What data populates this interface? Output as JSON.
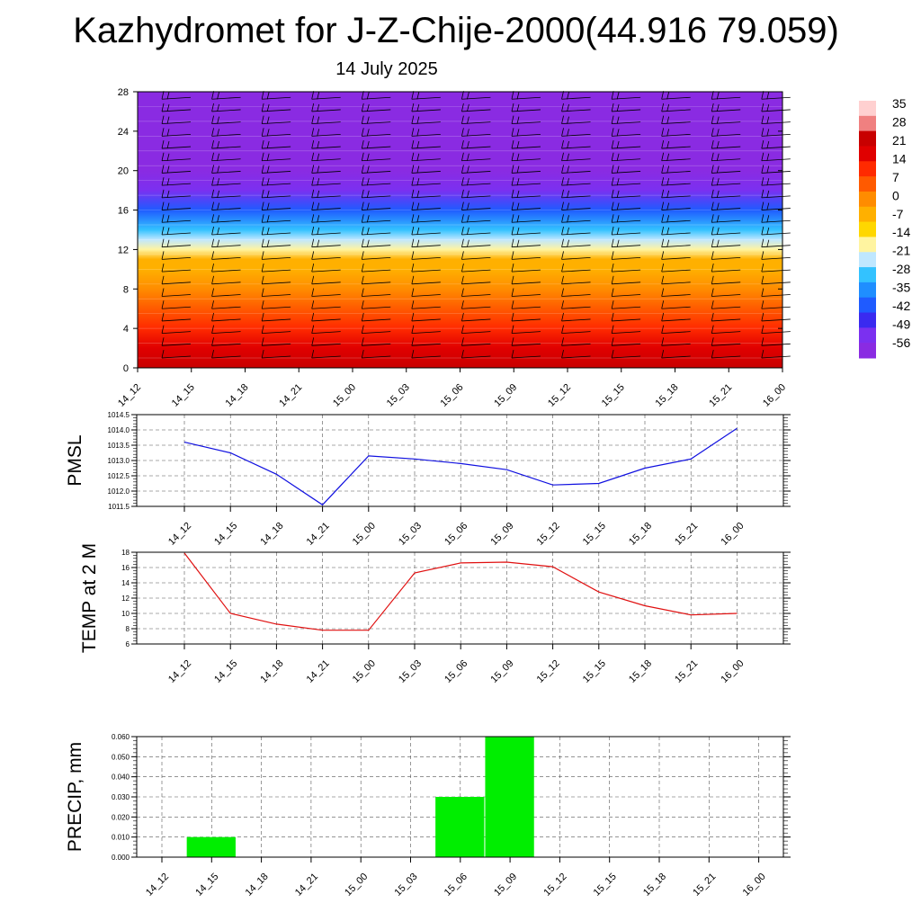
{
  "title": "Kazhydromet for J-Z-Chije-2000(44.916 79.059)",
  "subtitle": "14 July 2025",
  "colors": {
    "pmsl_line": "#1010e0",
    "temp_line": "#e01010",
    "precip_bar": "#00ee00",
    "cross_section_scale": [
      "#8a2be2",
      "#7b30f0",
      "#3a2af0",
      "#1f5bff",
      "#1f8eff",
      "#33c2ff",
      "#bfe7ff",
      "#fff4a0",
      "#ffd700",
      "#ffb000",
      "#ff8c00",
      "#ff5a00",
      "#ff2a00",
      "#e00000",
      "#c80000",
      "#f08080",
      "#ffd0d0"
    ]
  },
  "chart_data": [
    {
      "type": "heatmap",
      "title": "",
      "x": [
        "14_12",
        "14_15",
        "14_18",
        "14_21",
        "15_00",
        "15_03",
        "15_06",
        "15_09",
        "15_12",
        "15_15",
        "15_18",
        "15_21",
        "16_00"
      ],
      "yticks": [
        0,
        4,
        8,
        12,
        16,
        20,
        24,
        28
      ],
      "ylim": [
        0,
        28
      ],
      "colorbar_labels": [
        "35",
        "28",
        "21",
        "14",
        "7",
        "0",
        "-7",
        "-14",
        "-21",
        "-28",
        "-35",
        "-42",
        "-49",
        "-56"
      ],
      "colorbar_range": [
        -60,
        38
      ],
      "temperature_profile_by_height": [
        {
          "z": 0,
          "t": 22
        },
        {
          "z": 2,
          "t": 17
        },
        {
          "z": 4,
          "t": 12
        },
        {
          "z": 6,
          "t": 7
        },
        {
          "z": 8,
          "t": 2
        },
        {
          "z": 10,
          "t": -4
        },
        {
          "z": 11,
          "t": -8
        },
        {
          "z": 12,
          "t": -14
        },
        {
          "z": 13,
          "t": -21
        },
        {
          "z": 14,
          "t": -28
        },
        {
          "z": 16,
          "t": -40
        },
        {
          "z": 18,
          "t": -50
        },
        {
          "z": 20,
          "t": -58
        },
        {
          "z": 22,
          "t": -56
        },
        {
          "z": 24,
          "t": -58
        },
        {
          "z": 28,
          "t": -60
        }
      ],
      "wind_barbs": "present at every time step and level"
    },
    {
      "type": "line",
      "ylabel": "PMSL",
      "x": [
        "14_12",
        "14_15",
        "14_18",
        "14_21",
        "15_00",
        "15_03",
        "15_06",
        "15_09",
        "15_12",
        "15_15",
        "15_18",
        "15_21",
        "16_00"
      ],
      "yticks": [
        "1011.5",
        "1012.0",
        "1012.5",
        "1013.0",
        "1013.5",
        "1014.0",
        "1014.5"
      ],
      "ylim": [
        1011.5,
        1014.5
      ],
      "grid": true,
      "series": [
        {
          "values": [
            1013.6,
            1013.25,
            1012.55,
            1011.55,
            1013.15,
            1013.05,
            1012.9,
            1012.7,
            1012.2,
            1012.25,
            1012.75,
            1013.05,
            1014.05
          ]
        }
      ]
    },
    {
      "type": "line",
      "ylabel": "TEMP at 2 M",
      "x": [
        "14_12",
        "14_15",
        "14_18",
        "14_21",
        "15_00",
        "15_03",
        "15_06",
        "15_09",
        "15_12",
        "15_15",
        "15_18",
        "15_21",
        "16_00"
      ],
      "yticks": [
        "6",
        "8",
        "10",
        "12",
        "14",
        "16",
        "18"
      ],
      "ylim": [
        6,
        18
      ],
      "grid": true,
      "series": [
        {
          "values": [
            17.9,
            10.0,
            8.6,
            7.8,
            7.8,
            15.3,
            16.6,
            16.7,
            16.1,
            12.8,
            11.0,
            9.8,
            10.0
          ]
        }
      ]
    },
    {
      "type": "bar",
      "ylabel": "PRECIP, mm",
      "x": [
        "14_12",
        "14_15",
        "14_18",
        "14_21",
        "15_00",
        "15_03",
        "15_06",
        "15_09",
        "15_12",
        "15_15",
        "15_18",
        "15_21",
        "16_00"
      ],
      "yticks": [
        "0.000",
        "0.010",
        "0.020",
        "0.030",
        "0.040",
        "0.050",
        "0.060"
      ],
      "ylim": [
        0,
        0.06
      ],
      "grid": true,
      "values": [
        0,
        0.01,
        0,
        0,
        0,
        0,
        0.03,
        0.06,
        0,
        0,
        0,
        0,
        0
      ]
    }
  ]
}
